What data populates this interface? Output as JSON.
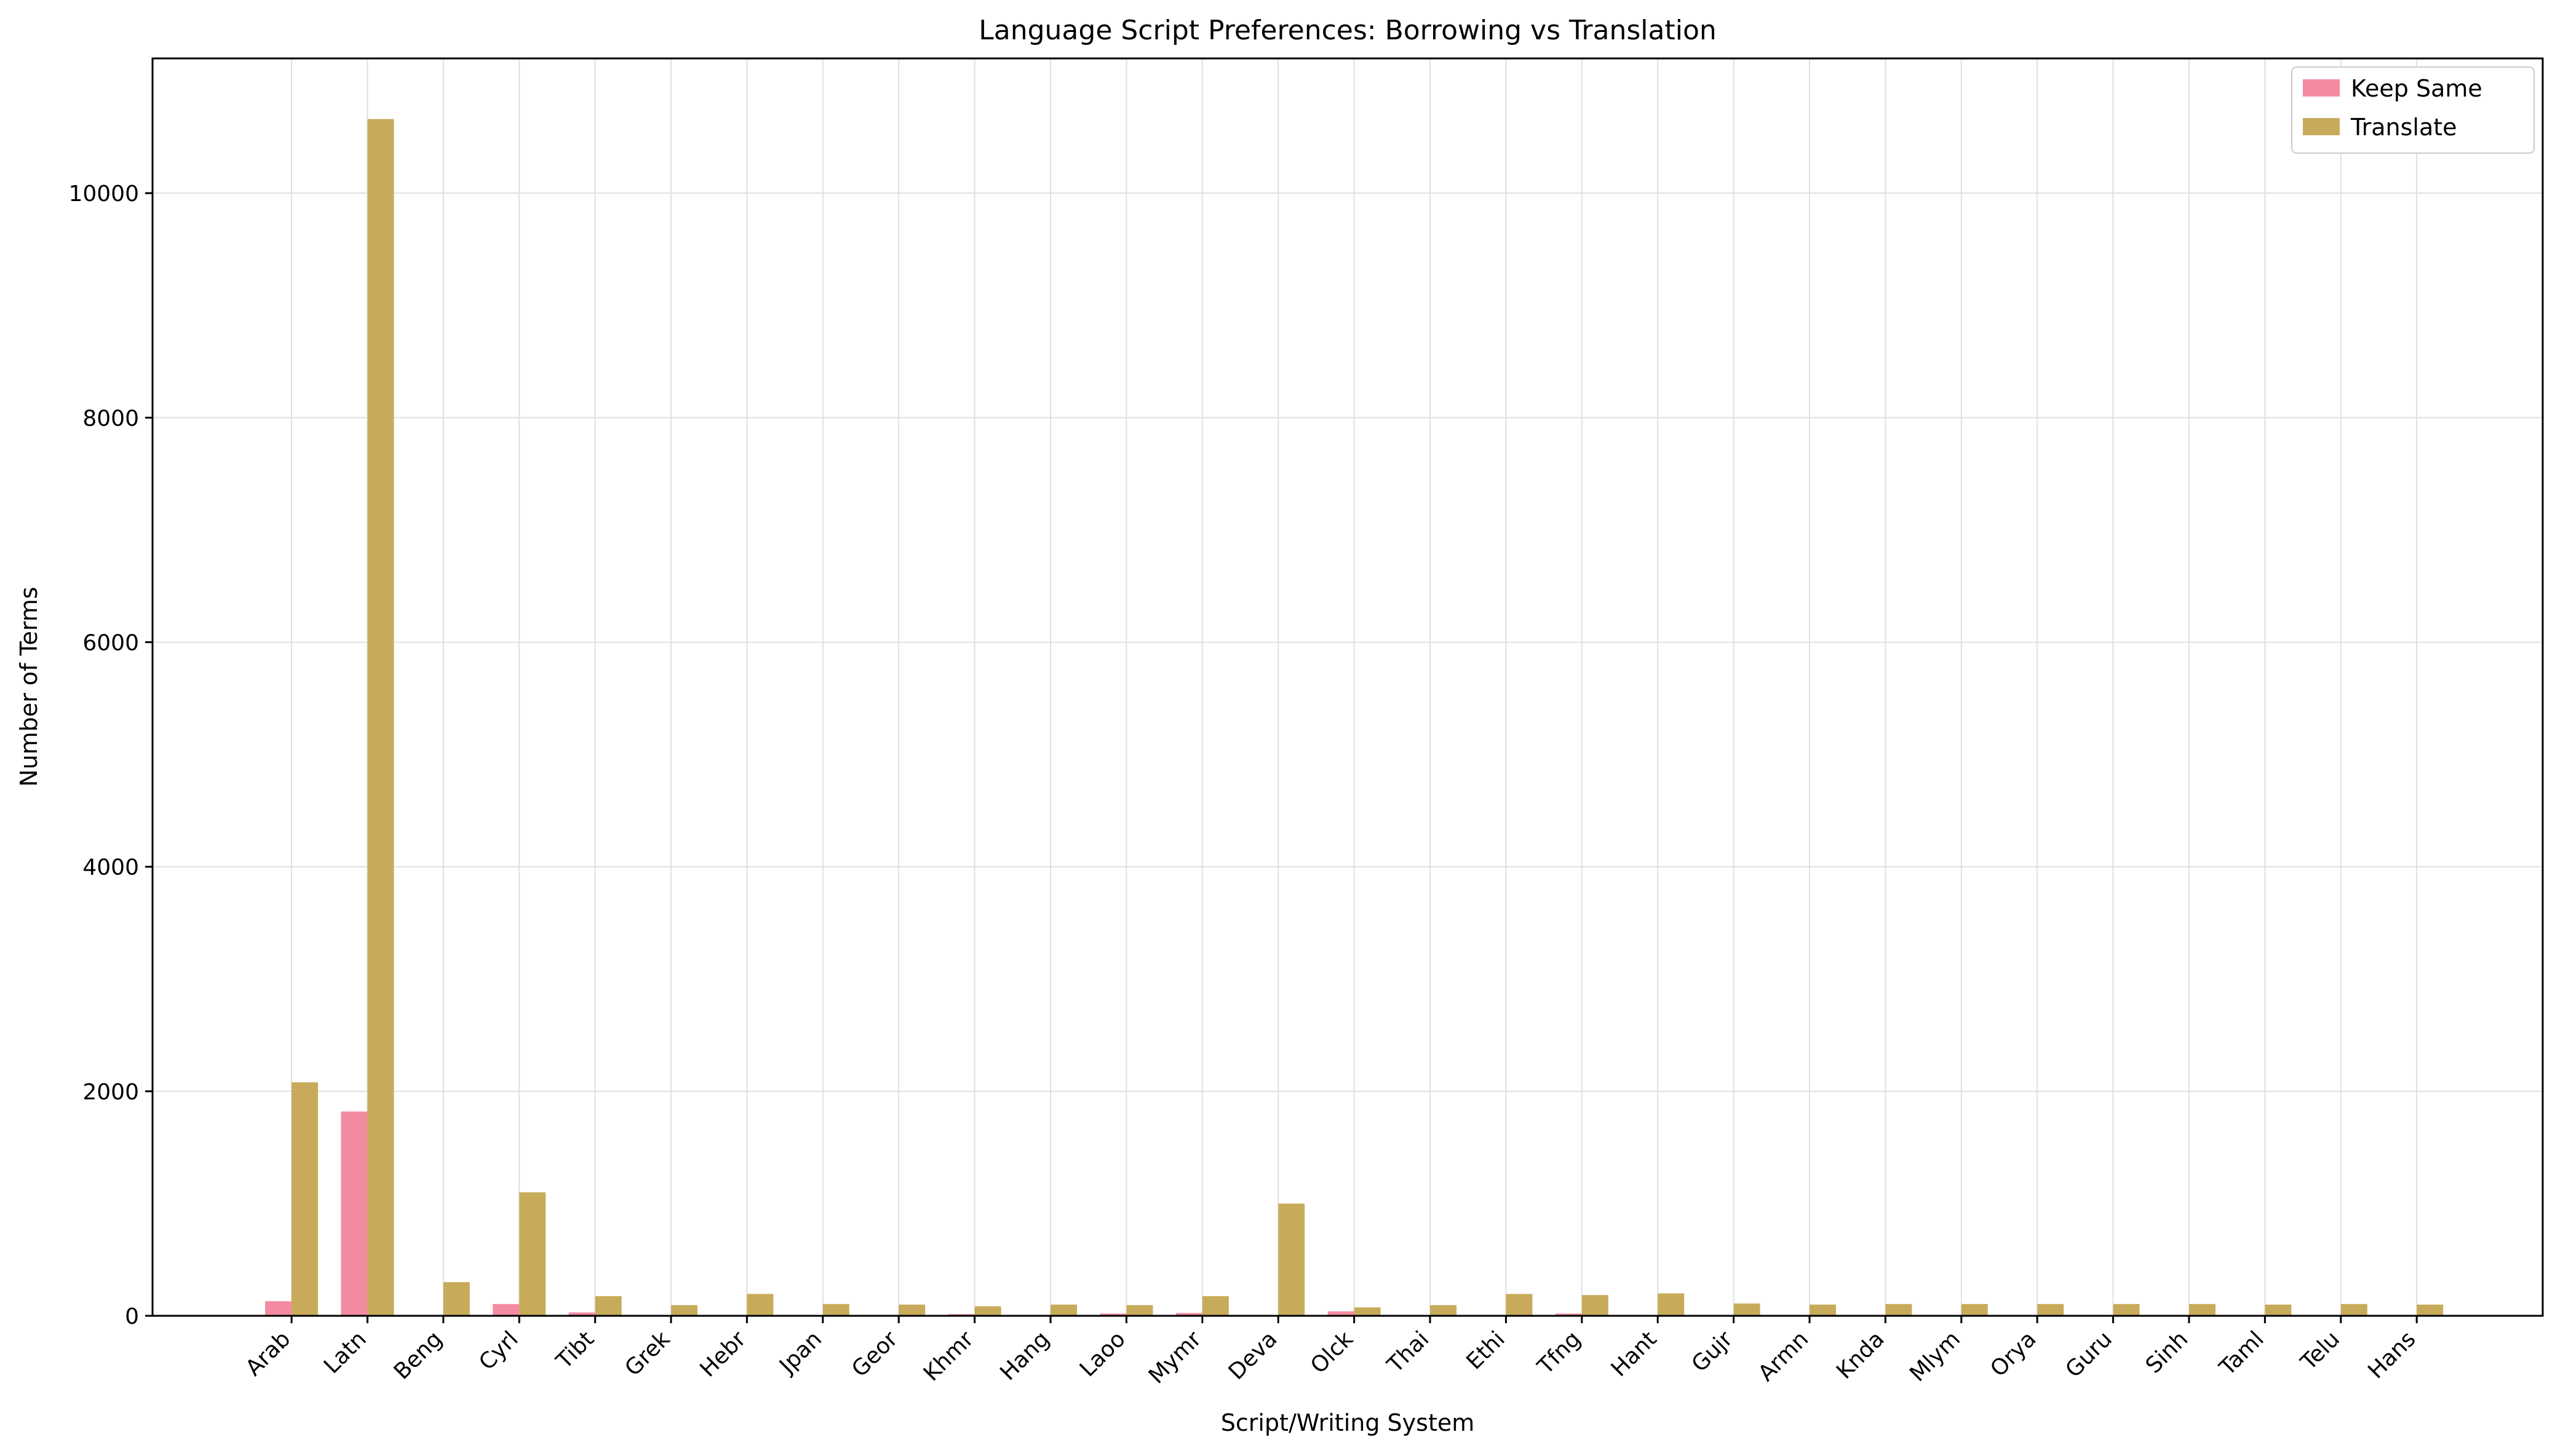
{
  "chart_data": {
    "type": "bar",
    "title": "Language Script Preferences: Borrowing vs Translation",
    "xlabel": "Script/Writing System",
    "ylabel": "Number of Terms",
    "ylim": [
      0,
      11200
    ],
    "yticks": [
      0,
      2000,
      4000,
      6000,
      8000,
      10000
    ],
    "grid": true,
    "legend_position": "top-right",
    "categories": [
      "Arab",
      "Latn",
      "Beng",
      "Cyrl",
      "Tibt",
      "Grek",
      "Hebr",
      "Jpan",
      "Geor",
      "Khmr",
      "Hang",
      "Laoo",
      "Mymr",
      "Deva",
      "Olck",
      "Thai",
      "Ethi",
      "Tfng",
      "Hant",
      "Gujr",
      "Armn",
      "Knda",
      "Mlym",
      "Orya",
      "Guru",
      "Sinh",
      "Taml",
      "Telu",
      "Hans"
    ],
    "series": [
      {
        "name": "Keep Same",
        "color": "#f28ba0",
        "values": [
          130,
          1820,
          5,
          105,
          30,
          5,
          5,
          5,
          5,
          15,
          5,
          20,
          25,
          5,
          40,
          5,
          5,
          20,
          5,
          5,
          5,
          5,
          5,
          5,
          5,
          5,
          5,
          5,
          5
        ]
      },
      {
        "name": "Translate",
        "color": "#c8ab5a",
        "values": [
          2080,
          10660,
          300,
          1100,
          175,
          95,
          195,
          105,
          100,
          85,
          100,
          95,
          175,
          1000,
          75,
          95,
          195,
          185,
          200,
          110,
          100,
          105,
          105,
          105,
          105,
          105,
          100,
          105,
          100
        ]
      }
    ]
  }
}
